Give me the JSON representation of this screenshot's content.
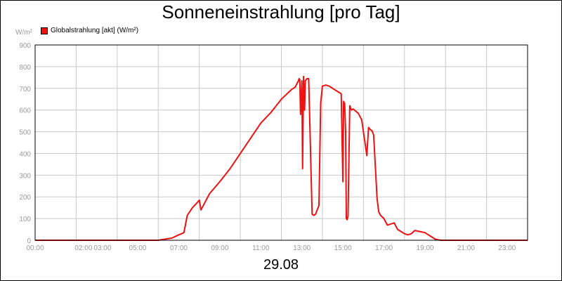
{
  "chart_data": {
    "type": "line",
    "title": "Sonneneinstrahlung [pro Tag]",
    "subtitle": "29.08",
    "ylabel": "W/m²",
    "xlabel": "",
    "ylim": [
      0,
      900
    ],
    "xlim": [
      "00:00",
      "24:00"
    ],
    "grid": true,
    "legend_position": "top-left",
    "x_tick_labels": [
      "00:00",
      "02:00",
      "03:00",
      "05:00",
      "07:00",
      "09:00",
      "11:00",
      "13:00",
      "15:00",
      "17:00",
      "19:00",
      "21:00",
      "23:00"
    ],
    "y_ticks": [
      0,
      100,
      200,
      300,
      400,
      500,
      600,
      700,
      800,
      900
    ],
    "series": [
      {
        "name": "Globalstrahlung [akt] (W/m²)",
        "color": "#ee1111",
        "x": [
          "00:00",
          "06:00",
          "06:40",
          "07:00",
          "07:15",
          "07:25",
          "07:40",
          "07:55",
          "08:00",
          "08:05",
          "08:30",
          "09:00",
          "09:30",
          "10:00",
          "10:30",
          "11:00",
          "11:30",
          "12:00",
          "12:20",
          "12:30",
          "12:40",
          "12:50",
          "12:52",
          "12:54",
          "12:56",
          "13:00",
          "13:02",
          "13:05",
          "13:08",
          "13:10",
          "13:15",
          "13:20",
          "13:30",
          "13:35",
          "13:40",
          "13:50",
          "13:55",
          "14:00",
          "14:10",
          "14:20",
          "14:40",
          "14:55",
          "15:00",
          "15:02",
          "15:05",
          "15:08",
          "15:10",
          "15:12",
          "15:15",
          "15:20",
          "15:25",
          "15:30",
          "15:45",
          "15:55",
          "16:10",
          "16:15",
          "16:20",
          "16:25",
          "16:30",
          "16:40",
          "16:45",
          "16:50",
          "17:00",
          "17:10",
          "17:30",
          "17:40",
          "17:50",
          "18:00",
          "18:10",
          "18:20",
          "18:30",
          "18:45",
          "19:00",
          "19:10",
          "19:20",
          "19:30",
          "19:45",
          "20:00",
          "20:15",
          "21:00",
          "24:00"
        ],
        "values": [
          0,
          0,
          10,
          25,
          35,
          115,
          150,
          175,
          185,
          140,
          215,
          270,
          330,
          400,
          470,
          540,
          590,
          650,
          680,
          695,
          705,
          735,
          745,
          740,
          580,
          735,
          330,
          755,
          600,
          735,
          745,
          745,
          120,
          115,
          120,
          160,
          630,
          710,
          715,
          710,
          690,
          675,
          270,
          640,
          630,
          500,
          100,
          95,
          110,
          620,
          600,
          605,
          585,
          555,
          390,
          520,
          510,
          505,
          485,
          190,
          130,
          115,
          100,
          70,
          80,
          50,
          40,
          30,
          25,
          30,
          45,
          40,
          35,
          25,
          15,
          5,
          0,
          0,
          0,
          0,
          0
        ]
      }
    ]
  }
}
